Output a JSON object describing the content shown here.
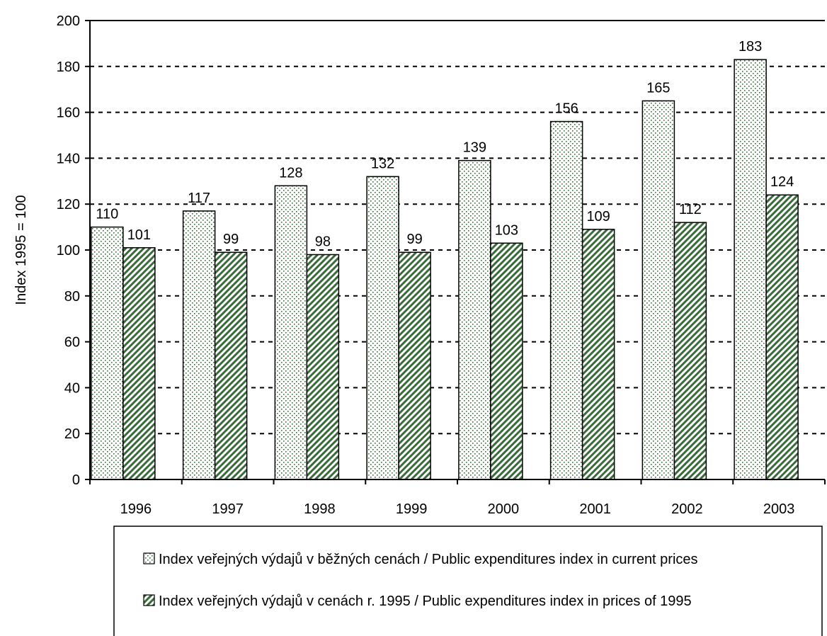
{
  "chart_data": {
    "type": "bar",
    "title": "",
    "xlabel": "",
    "ylabel": "Index 1995 = 100",
    "ylim": [
      0,
      200
    ],
    "yticks": [
      0,
      20,
      40,
      60,
      80,
      100,
      120,
      140,
      160,
      180,
      200
    ],
    "grid": "horizontal-dashed",
    "legend_position": "bottom",
    "categories": [
      "1996",
      "1997",
      "1998",
      "1999",
      "2000",
      "2001",
      "2002",
      "2003"
    ],
    "series": [
      {
        "name": "Index veřejných výdajů v běžných cenách / Public expenditures index in current prices",
        "values": [
          110,
          117,
          128,
          132,
          139,
          156,
          165,
          183
        ],
        "labels": [
          "110",
          "117",
          "128",
          "132",
          "139",
          "156",
          "165",
          "183"
        ],
        "pattern": "dots",
        "color": "#3a6b3a"
      },
      {
        "name": "Index veřejných výdajů v cenách r. 1995 / Public expenditures index in prices of 1995",
        "values": [
          101,
          99,
          98,
          99,
          103,
          109,
          112,
          124
        ],
        "labels": [
          "101",
          "99",
          "98",
          "99",
          "103",
          "109",
          "112",
          "124"
        ],
        "pattern": "diagonal",
        "color": "#3a6b3a"
      }
    ]
  }
}
